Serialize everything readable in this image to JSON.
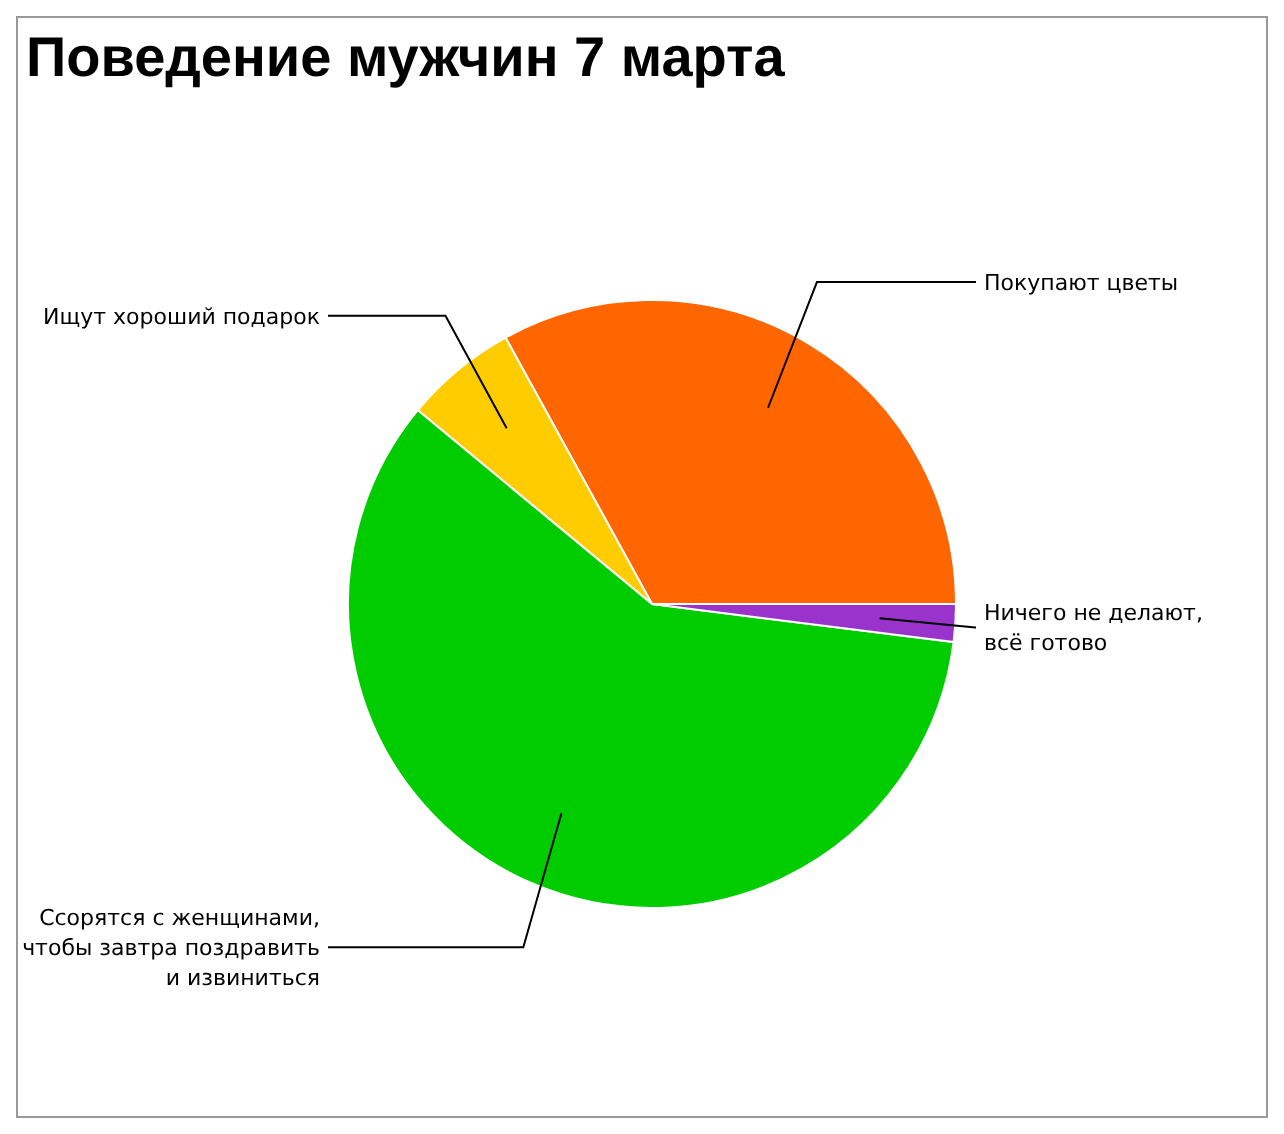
{
  "chart_data": {
    "type": "pie",
    "title": "Поведение мужчин 7 марта",
    "categories": [
      "Покупают цветы",
      "Ищут хороший подарок",
      "Ссорятся с женщинами,\nчтобы завтра поздравить\nи извиниться",
      "Ничего не делают,\nвсё готово"
    ],
    "values": [
      33,
      6,
      59,
      2
    ],
    "colors": [
      "#ff6600",
      "#ffcc00",
      "#00cc00",
      "#9933cc"
    ],
    "legend": false
  }
}
